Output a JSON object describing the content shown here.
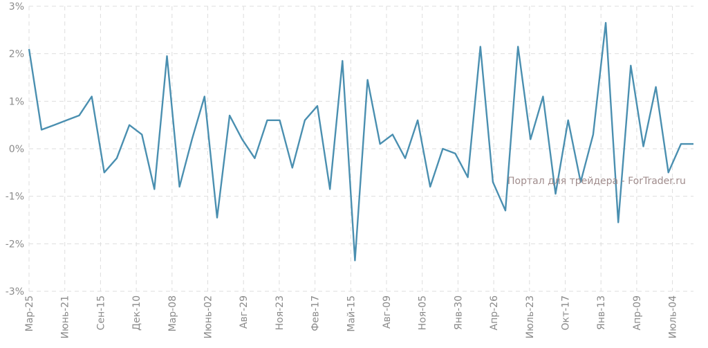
{
  "chart_data": {
    "type": "line",
    "ylim": [
      -3,
      3
    ],
    "y_ticks": [
      3,
      2,
      1,
      0,
      -1,
      -2,
      -3
    ],
    "y_tick_labels": [
      "3%",
      "2%",
      "1%",
      "0%",
      "-1%",
      "-2%",
      "-3%"
    ],
    "x_tick_labels": [
      "Мар-25",
      "Июнь-21",
      "Сен-15",
      "Дек-10",
      "Мар-08",
      "Июнь-02",
      "Авг-29",
      "Ноя-23",
      "Фев-17",
      "Май-15",
      "Авг-09",
      "Ноя-05",
      "Янв-30",
      "Апр-26",
      "Июль-23",
      "Окт-17",
      "Янв-13",
      "Апр-09",
      "Июль-04"
    ],
    "grid": true,
    "series": [
      {
        "color": "#4a8fb0",
        "values": [
          2.1,
          0.4,
          0.5,
          0.6,
          0.7,
          1.1,
          -0.5,
          -0.2,
          0.5,
          0.3,
          -0.85,
          1.95,
          -0.8,
          0.2,
          1.1,
          -1.45,
          0.7,
          0.2,
          -0.2,
          0.6,
          0.6,
          -0.4,
          0.6,
          0.9,
          -0.85,
          1.85,
          -2.35,
          1.45,
          0.1,
          0.3,
          -0.2,
          0.6,
          -0.8,
          0.0,
          -0.1,
          -0.6,
          2.15,
          -0.7,
          -1.3,
          2.15,
          0.2,
          1.1,
          -0.95,
          0.6,
          -0.7,
          0.3,
          2.65,
          -1.55,
          1.75,
          0.05,
          1.3,
          -0.5,
          0.1,
          0.1
        ]
      }
    ]
  },
  "watermark": "Портал для трейдера - ForTrader.ru"
}
